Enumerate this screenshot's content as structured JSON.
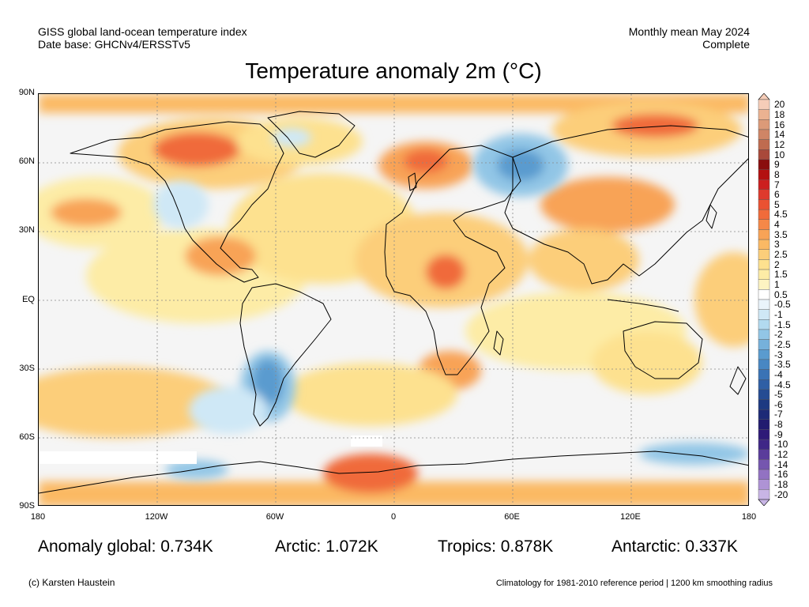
{
  "header": {
    "line1_left": "GISS global land-ocean temperature index",
    "line2_left": "Date base: GHCNv4/ERSSTv5",
    "line1_right": "Monthly mean May 2024",
    "line2_right": "Complete"
  },
  "title": "Temperature anomaly 2m (°C)",
  "axes": {
    "lat_ticks": [
      "90N",
      "60N",
      "30N",
      "EQ",
      "30S",
      "60S",
      "90S"
    ],
    "lon_ticks": [
      "180",
      "120W",
      "60W",
      "0",
      "60E",
      "120E",
      "180"
    ]
  },
  "colorbar": {
    "labels": [
      "20",
      "18",
      "16",
      "14",
      "12",
      "10",
      "9",
      "8",
      "7",
      "6",
      "5",
      "4.5",
      "4",
      "3.5",
      "3",
      "2.5",
      "2",
      "1.5",
      "1",
      "0.5",
      "-0.5",
      "-1",
      "-1.5",
      "-2",
      "-2.5",
      "-3",
      "-3.5",
      "-4",
      "-4.5",
      "-5",
      "-6",
      "-7",
      "-8",
      "-9",
      "-10",
      "-12",
      "-14",
      "-16",
      "-18",
      "-20"
    ],
    "colors": [
      "#f6cdb8",
      "#ebb291",
      "#dc9a78",
      "#cf8566",
      "#bf6b4f",
      "#a9493a",
      "#8a0e0e",
      "#b31010",
      "#cc1f1f",
      "#de3a2d",
      "#ea5232",
      "#f06b3a",
      "#f58848",
      "#f8a356",
      "#fbb964",
      "#fcce7a",
      "#fde18f",
      "#fdeca6",
      "#fdf4c2",
      "#ffffff",
      "#eaf4fb",
      "#cfe8f6",
      "#b2daf0",
      "#92c6e6",
      "#76b1db",
      "#5a9bcf",
      "#4887c3",
      "#3a73b5",
      "#2f5fa5",
      "#254c93",
      "#1d3a82",
      "#1d2a77",
      "#221c70",
      "#2e1a78",
      "#3f2787",
      "#5a3c9b",
      "#7556af",
      "#9272c2",
      "#ae93d5",
      "#c8b5e5"
    ]
  },
  "stats": {
    "global": "Anomaly global: 0.734K",
    "arctic": "Arctic: 1.072K",
    "tropics": "Tropics: 0.878K",
    "antarctic": "Antarctic: 0.337K"
  },
  "footer": {
    "left": "(c) Karsten Haustein",
    "right": "Climatology for 1981-2010 reference period | 1200 km smoothing radius"
  },
  "map_colors": {
    "ocean_base": "#f5f5f5",
    "warm1": "#fdeca6",
    "warm2": "#fde18f",
    "warm3": "#fcce7a",
    "warm4": "#f8a356",
    "warm5": "#f06b3a",
    "warm6": "#de3a2d",
    "cool1": "#cfe8f6",
    "cool2": "#92c6e6",
    "cool3": "#5a9bcf",
    "land_outline": "#000000",
    "grid": "#888888"
  }
}
